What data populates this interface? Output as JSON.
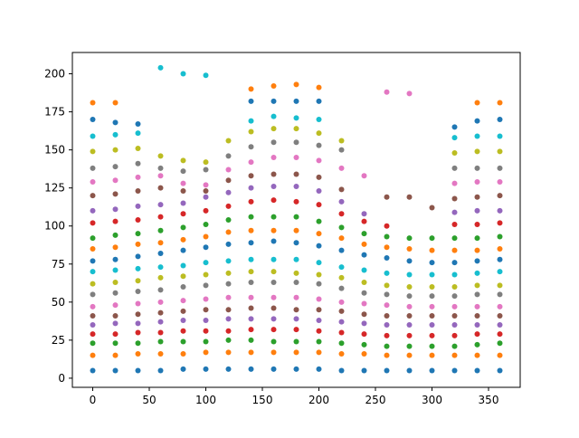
{
  "chart_data": {
    "type": "scatter",
    "x": [
      0,
      20,
      40,
      60,
      80,
      100,
      120,
      140,
      160,
      180,
      200,
      220,
      240,
      260,
      280,
      300,
      320,
      340,
      360
    ],
    "xlim": [
      -18,
      378
    ],
    "xticks": [
      0,
      50,
      100,
      150,
      200,
      250,
      300,
      350
    ],
    "ylim": [
      -6,
      214
    ],
    "yticks": [
      0,
      25,
      50,
      75,
      100,
      125,
      150,
      175,
      200
    ],
    "grid": false,
    "series": [
      {
        "color": "#1f77b4",
        "values": [
          5,
          5,
          5,
          5,
          6,
          6,
          6,
          6,
          6,
          6,
          6,
          5,
          5,
          5,
          5,
          5,
          5,
          5,
          5
        ]
      },
      {
        "color": "#ff7f0e",
        "values": [
          15,
          15,
          16,
          16,
          16,
          17,
          17,
          17,
          17,
          17,
          17,
          16,
          16,
          15,
          15,
          15,
          15,
          15,
          15
        ]
      },
      {
        "color": "#2ca02c",
        "values": [
          23,
          23,
          23,
          24,
          24,
          24,
          25,
          25,
          24,
          24,
          24,
          23,
          22,
          21,
          21,
          21,
          21,
          22,
          23
        ]
      },
      {
        "color": "#d62728",
        "values": [
          29,
          29,
          30,
          30,
          31,
          31,
          31,
          32,
          32,
          32,
          31,
          30,
          29,
          28,
          28,
          28,
          28,
          29,
          29
        ]
      },
      {
        "color": "#9467bd",
        "values": [
          35,
          36,
          36,
          37,
          38,
          38,
          39,
          39,
          39,
          39,
          38,
          37,
          36,
          35,
          35,
          35,
          35,
          35,
          35
        ]
      },
      {
        "color": "#8c564b",
        "values": [
          41,
          41,
          42,
          43,
          44,
          45,
          45,
          46,
          46,
          45,
          45,
          44,
          42,
          41,
          41,
          41,
          41,
          41,
          41
        ]
      },
      {
        "color": "#e377c2",
        "values": [
          47,
          48,
          49,
          50,
          51,
          52,
          53,
          53,
          53,
          53,
          52,
          50,
          49,
          48,
          47,
          47,
          47,
          47,
          47
        ]
      },
      {
        "color": "#7f7f7f",
        "values": [
          55,
          56,
          57,
          58,
          60,
          61,
          62,
          63,
          63,
          63,
          62,
          59,
          56,
          55,
          54,
          54,
          54,
          55,
          55
        ]
      },
      {
        "color": "#bcbd22",
        "values": [
          62,
          63,
          64,
          66,
          67,
          68,
          69,
          70,
          70,
          69,
          68,
          66,
          63,
          61,
          60,
          60,
          60,
          61,
          61
        ]
      },
      {
        "color": "#17becf",
        "values": [
          70,
          71,
          72,
          73,
          74,
          76,
          77,
          78,
          78,
          78,
          76,
          73,
          71,
          69,
          68,
          68,
          68,
          69,
          70
        ]
      },
      {
        "color": "#1f77b4",
        "values": [
          77,
          78,
          80,
          82,
          84,
          86,
          88,
          89,
          90,
          89,
          87,
          84,
          81,
          79,
          77,
          76,
          76,
          77,
          78
        ]
      },
      {
        "color": "#ff7f0e",
        "values": [
          85,
          86,
          88,
          89,
          91,
          93,
          96,
          97,
          97,
          97,
          95,
          92,
          88,
          86,
          85,
          84,
          84,
          84,
          85
        ]
      },
      {
        "color": "#2ca02c",
        "values": [
          92,
          94,
          95,
          97,
          99,
          101,
          104,
          106,
          106,
          106,
          103,
          99,
          95,
          93,
          92,
          92,
          92,
          92,
          93
        ]
      },
      {
        "color": "#d62728",
        "values": [
          102,
          103,
          104,
          106,
          108,
          110,
          113,
          116,
          117,
          116,
          114,
          108,
          103,
          100,
          null,
          null,
          101,
          101,
          102
        ]
      },
      {
        "color": "#9467bd",
        "values": [
          110,
          111,
          113,
          114,
          115,
          119,
          122,
          125,
          126,
          126,
          123,
          116,
          108,
          null,
          null,
          null,
          109,
          110,
          110
        ]
      },
      {
        "color": "#8c564b",
        "values": [
          120,
          121,
          123,
          125,
          123,
          123,
          130,
          133,
          134,
          134,
          132,
          124,
          null,
          119,
          119,
          112,
          118,
          119,
          120
        ]
      },
      {
        "color": "#e377c2",
        "values": [
          129,
          130,
          132,
          133,
          128,
          127,
          137,
          142,
          145,
          145,
          143,
          138,
          133,
          188,
          187,
          null,
          128,
          129,
          129
        ]
      },
      {
        "color": "#7f7f7f",
        "values": [
          138,
          139,
          141,
          138,
          136,
          137,
          146,
          152,
          155,
          155,
          153,
          150,
          null,
          null,
          null,
          null,
          138,
          138,
          138
        ]
      },
      {
        "color": "#bcbd22",
        "values": [
          149,
          150,
          151,
          146,
          143,
          142,
          156,
          162,
          164,
          164,
          161,
          156,
          null,
          null,
          null,
          null,
          148,
          149,
          149
        ]
      },
      {
        "color": "#17becf",
        "values": [
          159,
          160,
          161,
          204,
          200,
          199,
          null,
          169,
          172,
          171,
          170,
          null,
          null,
          null,
          null,
          null,
          158,
          159,
          159
        ]
      },
      {
        "color": "#1f77b4",
        "values": [
          170,
          168,
          167,
          null,
          null,
          null,
          null,
          182,
          182,
          182,
          182,
          null,
          null,
          null,
          null,
          null,
          165,
          169,
          170
        ]
      },
      {
        "color": "#ff7f0e",
        "values": [
          181,
          181,
          null,
          null,
          null,
          null,
          null,
          190,
          192,
          193,
          191,
          null,
          null,
          null,
          null,
          null,
          null,
          181,
          181
        ]
      }
    ]
  }
}
